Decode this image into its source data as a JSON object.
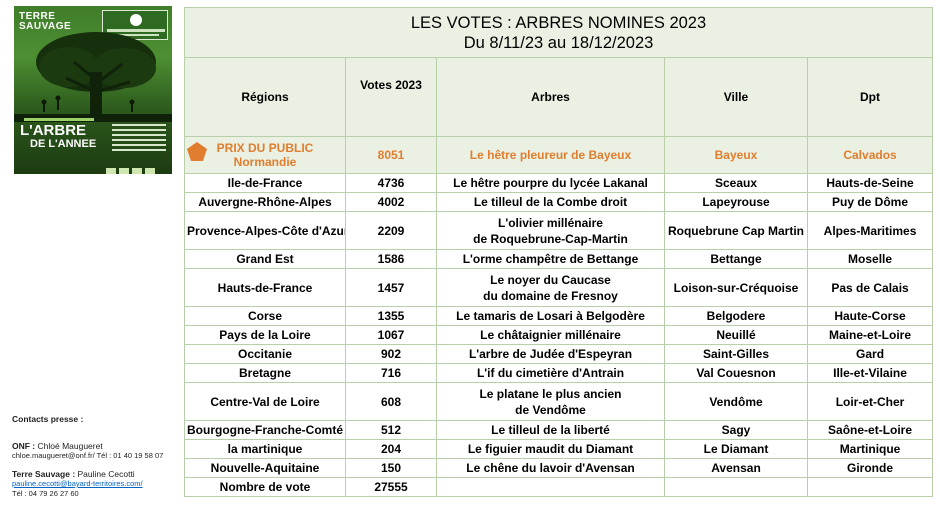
{
  "poster": {
    "brand_line1": "TERRE",
    "brand_line2": "SAUVAGE",
    "title_line1": "L'ARBRE",
    "title_line2": "DE L'ANNEE"
  },
  "contacts": {
    "heading": "Contacts presse :",
    "onf_org": "ONF :",
    "onf_name": " Chloé Maugueret",
    "onf_line": "chloe.maugueret@onf.fr/ Tél : 01 40 19 58 07",
    "ts_org": "Terre Sauvage :",
    "ts_name": " Pauline Cecotti",
    "ts_email": "pauline.cecotti@bayard-territoires.com/",
    "ts_phone": "Tél : 04 79 26 27 60"
  },
  "table": {
    "title_line1": "LES VOTES : ARBRES NOMINES 2023",
    "title_line2": "Du 8/11/23 au 18/12/2023",
    "headers": {
      "region": "Régions",
      "votes": "Votes 2023",
      "arbres": "Arbres",
      "ville": "Ville",
      "dpt": "Dpt"
    },
    "prize": {
      "label": "PRIX DU PUBLIC",
      "region": "Normandie",
      "votes": "8051",
      "arbre": "Le hêtre pleureur de Bayeux",
      "ville": "Bayeux",
      "dpt": "Calvados"
    },
    "rows": [
      {
        "region": "Ile-de-France",
        "votes": "4736",
        "arbre1": "Le hêtre pourpre du lycée Lakanal",
        "arbre2": "",
        "ville": "Sceaux",
        "dpt": "Hauts-de-Seine"
      },
      {
        "region": "Auvergne-Rhône-Alpes",
        "votes": "4002",
        "arbre1": "Le tilleul de la Combe droit",
        "arbre2": "",
        "ville": "Lapeyrouse",
        "dpt": "Puy de Dôme"
      },
      {
        "region": "Provence-Alpes-Côte d'Azur",
        "votes": "2209",
        "arbre1": "L'olivier millénaire",
        "arbre2": "de Roquebrune-Cap-Martin",
        "ville": "Roquebrune Cap Martin",
        "dpt": "Alpes-Maritimes"
      },
      {
        "region": "Grand Est",
        "votes": "1586",
        "arbre1": "L'orme champêtre de Bettange",
        "arbre2": "",
        "ville": "Bettange",
        "dpt": "Moselle"
      },
      {
        "region": "Hauts-de-France",
        "votes": "1457",
        "arbre1": "Le noyer du Caucase",
        "arbre2": "du domaine de Fresnoy",
        "ville": "Loison-sur-Créquoise",
        "dpt": "Pas de Calais"
      },
      {
        "region": "Corse",
        "votes": "1355",
        "arbre1": "Le tamaris de Losari à Belgodère",
        "arbre2": "",
        "ville": "Belgodere",
        "dpt": "Haute-Corse"
      },
      {
        "region": "Pays de la Loire",
        "votes": "1067",
        "arbre1": "Le châtaignier millénaire",
        "arbre2": "",
        "ville": "Neuillé",
        "dpt": "Maine-et-Loire"
      },
      {
        "region": "Occitanie",
        "votes": "902",
        "arbre1": "L'arbre de Judée d'Espeyran",
        "arbre2": "",
        "ville": "Saint-Gilles",
        "dpt": "Gard"
      },
      {
        "region": "Bretagne",
        "votes": "716",
        "arbre1": "L'if du cimetière d'Antrain",
        "arbre2": "",
        "ville": "Val Couesnon",
        "dpt": "Ille-et-Vilaine"
      },
      {
        "region": "Centre-Val de Loire",
        "votes": "608",
        "arbre1": "Le platane le plus ancien",
        "arbre2": "de Vendôme",
        "ville": "Vendôme",
        "dpt": "Loir-et-Cher"
      },
      {
        "region": "Bourgogne-Franche-Comté",
        "votes": "512",
        "arbre1": "Le tilleul de la liberté",
        "arbre2": "",
        "ville": "Sagy",
        "dpt": "Saône-et-Loire"
      },
      {
        "region": "la martinique",
        "votes": "204",
        "arbre1": "Le figuier maudit du Diamant",
        "arbre2": "",
        "ville": "Le Diamant",
        "dpt": "Martinique"
      },
      {
        "region": "Nouvelle-Aquitaine",
        "votes": "150",
        "arbre1": "Le chêne du lavoir d'Avensan",
        "arbre2": "",
        "ville": "Avensan",
        "dpt": "Gironde"
      }
    ],
    "total": {
      "label": "Nombre de vote",
      "value": "27555"
    }
  },
  "colors": {
    "accent_orange": "#e07d2e",
    "header_green": "#eaf1e3",
    "border_green": "#b9cfa9",
    "link_blue": "#0563c1"
  }
}
